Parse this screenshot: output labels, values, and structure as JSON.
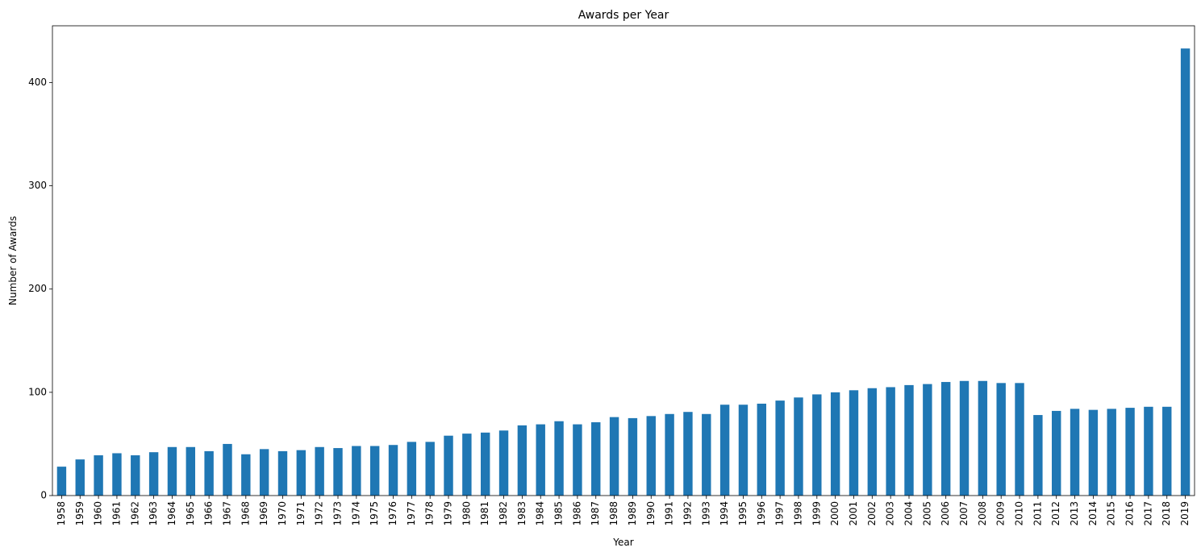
{
  "chart_data": {
    "type": "bar",
    "title": "Awards per Year",
    "xlabel": "Year",
    "ylabel": "Number of Awards",
    "ylim": [
      0,
      455
    ],
    "yticks": [
      0,
      100,
      200,
      300,
      400
    ],
    "grid": false,
    "legend": "none",
    "bar_color": "#1f77b4",
    "categories": [
      "1958",
      "1959",
      "1960",
      "1961",
      "1962",
      "1963",
      "1964",
      "1965",
      "1966",
      "1967",
      "1968",
      "1969",
      "1970",
      "1971",
      "1972",
      "1973",
      "1974",
      "1975",
      "1976",
      "1977",
      "1978",
      "1979",
      "1980",
      "1981",
      "1982",
      "1983",
      "1984",
      "1985",
      "1986",
      "1987",
      "1988",
      "1989",
      "1990",
      "1991",
      "1992",
      "1993",
      "1994",
      "1995",
      "1996",
      "1997",
      "1998",
      "1999",
      "2000",
      "2001",
      "2002",
      "2003",
      "2004",
      "2005",
      "2006",
      "2007",
      "2008",
      "2009",
      "2010",
      "2011",
      "2012",
      "2013",
      "2014",
      "2015",
      "2016",
      "2017",
      "2018",
      "2019"
    ],
    "values": [
      28,
      35,
      39,
      41,
      39,
      42,
      47,
      47,
      43,
      50,
      40,
      45,
      43,
      44,
      47,
      46,
      48,
      48,
      49,
      52,
      52,
      58,
      60,
      61,
      63,
      68,
      69,
      72,
      69,
      71,
      76,
      75,
      77,
      79,
      81,
      79,
      88,
      88,
      89,
      92,
      95,
      98,
      100,
      102,
      104,
      105,
      107,
      108,
      110,
      111,
      111,
      109,
      109,
      78,
      82,
      84,
      83,
      84,
      85,
      86,
      86,
      433
    ]
  }
}
